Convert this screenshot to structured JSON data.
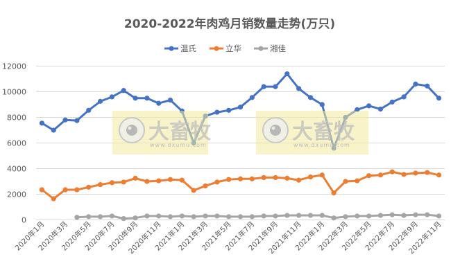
{
  "chart_data": {
    "type": "line",
    "title": "2020-2022年肉鸡月销数量走势(万只)",
    "xlabel": "",
    "ylabel": "",
    "ylim": [
      0,
      12000
    ],
    "yticks": [
      0,
      2000,
      4000,
      6000,
      8000,
      10000,
      12000
    ],
    "grid": true,
    "legend_position": "top",
    "x": [
      "2020年1月",
      "2020年2月",
      "2020年3月",
      "2020年4月",
      "2020年5月",
      "2020年6月",
      "2020年7月",
      "2020年8月",
      "2020年9月",
      "2020年10月",
      "2020年11月",
      "2020年12月",
      "2021年1月",
      "2021年2月",
      "2021年3月",
      "2021年4月",
      "2021年5月",
      "2021年6月",
      "2021年7月",
      "2021年8月",
      "2021年9月",
      "2021年10月",
      "2021年11月",
      "2021年12月",
      "2022年1月",
      "2022年2月",
      "2022年3月",
      "2022年4月",
      "2022年5月",
      "2022年6月",
      "2022年7月",
      "2022年8月",
      "2022年9月",
      "2022年10月",
      "2022年11月"
    ],
    "xtick_labels": [
      "2020年1月",
      "2020年3月",
      "2020年5月",
      "2020年7月",
      "2020年9月",
      "2020年11月",
      "2021年1月",
      "2021年3月",
      "2021年5月",
      "2021年7月",
      "2021年9月",
      "2021年11月",
      "2022年1月",
      "2022年3月",
      "2022年5月",
      "2022年7月",
      "2022年9月",
      "2022年11月"
    ],
    "series": [
      {
        "name": "温氏",
        "color": "#4472C4",
        "values": [
          7550,
          7000,
          7800,
          7750,
          8550,
          9250,
          9600,
          10100,
          9500,
          9500,
          9100,
          9350,
          8500,
          6000,
          8100,
          8400,
          8550,
          8800,
          9550,
          10400,
          10400,
          11400,
          10250,
          9550,
          9000,
          5600,
          8000,
          8600,
          8900,
          8650,
          9200,
          9600,
          10600,
          10450,
          9500
        ]
      },
      {
        "name": "立华",
        "color": "#ED7D31",
        "values": [
          2350,
          1650,
          2350,
          2350,
          2550,
          2750,
          2900,
          2950,
          3250,
          3000,
          3050,
          3150,
          3100,
          2300,
          2650,
          2950,
          3150,
          3200,
          3200,
          3300,
          3300,
          3250,
          3100,
          3350,
          3500,
          2100,
          3000,
          3050,
          3450,
          3500,
          3750,
          3550,
          3650,
          3700,
          3500
        ]
      },
      {
        "name": "湘佳",
        "color": "#A5A5A5",
        "values": [
          null,
          null,
          null,
          200,
          250,
          250,
          300,
          100,
          150,
          300,
          300,
          250,
          300,
          250,
          300,
          300,
          250,
          250,
          250,
          300,
          300,
          350,
          350,
          350,
          350,
          150,
          250,
          300,
          300,
          350,
          400,
          350,
          400,
          400,
          300
        ]
      }
    ]
  },
  "watermark": {
    "name": "大畜牧",
    "url": "www.dxumu.com"
  }
}
